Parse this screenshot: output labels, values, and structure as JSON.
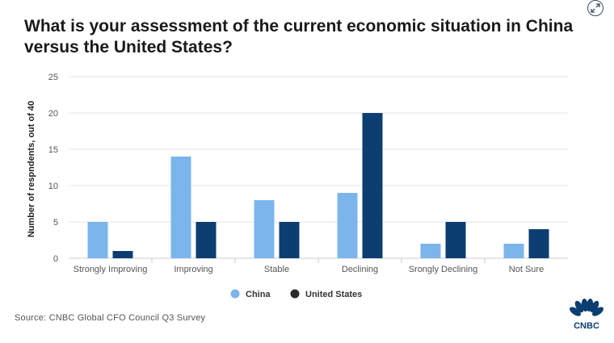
{
  "title": "What is your assessment of the current economic situation in China versus the United States?",
  "source": "Source: CNBC Global CFO Council Q3 Survey",
  "logo_text": "CNBC",
  "expand_icon": "expand-icon",
  "colors": {
    "china": "#7cb5ec",
    "us": "#0c3e72",
    "legend_us": "#2b2b2b",
    "grid": "#e6e6e6"
  },
  "chart_data": {
    "type": "bar",
    "title": "What is your assessment of the current economic situation in China versus the United States?",
    "xlabel": "",
    "ylabel": "Number of respndents, out of 40",
    "ylim": [
      0,
      25
    ],
    "yticks": [
      0,
      5,
      10,
      15,
      20,
      25
    ],
    "grid": true,
    "legend_position": "bottom",
    "categories": [
      "Strongly Improving",
      "Improving",
      "Stable",
      "Declining",
      "Srongly Declining",
      "Not Sure"
    ],
    "series": [
      {
        "name": "China",
        "values": [
          5,
          14,
          8,
          9,
          2,
          2
        ]
      },
      {
        "name": "United States",
        "values": [
          1,
          5,
          5,
          20,
          5,
          4
        ]
      }
    ]
  }
}
